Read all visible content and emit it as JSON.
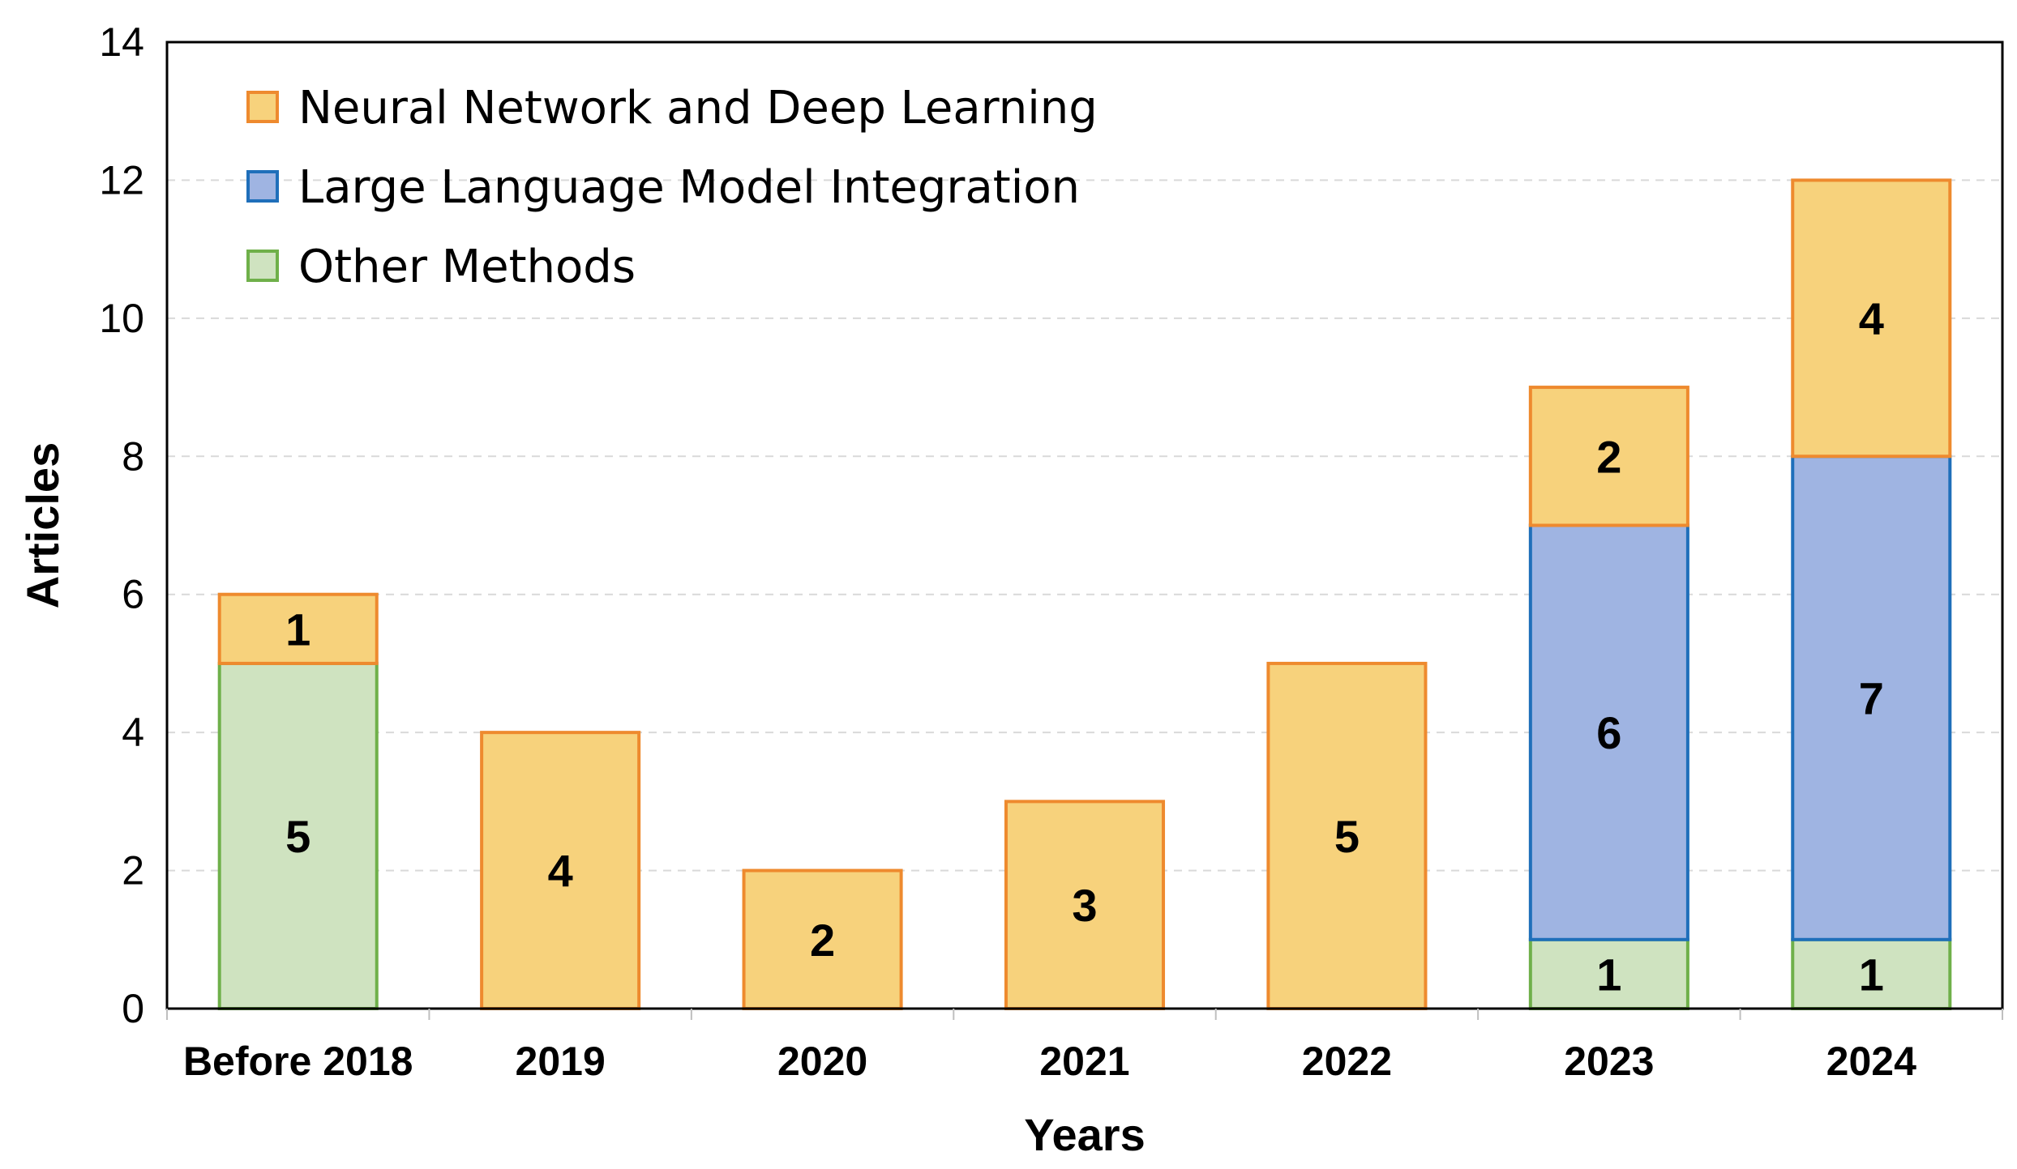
{
  "chart_data": {
    "type": "bar",
    "stacked": true,
    "title": "",
    "xlabel": "Years",
    "ylabel": "Articles",
    "ylim": [
      0,
      14
    ],
    "yticks": [
      0,
      2,
      4,
      6,
      8,
      10,
      12,
      14
    ],
    "grid": true,
    "legend_position": "top-left",
    "categories": [
      "Before 2018",
      "2019",
      "2020",
      "2021",
      "2022",
      "2023",
      "2024"
    ],
    "series": [
      {
        "name": "Other Methods",
        "fill": "#cfe3c0",
        "stroke": "#6fb04a",
        "values": [
          5,
          0,
          0,
          0,
          0,
          1,
          1
        ]
      },
      {
        "name": "Large Language Model Integration",
        "fill": "#9fb4e2",
        "stroke": "#1f6fba",
        "values": [
          0,
          0,
          0,
          0,
          0,
          6,
          7
        ]
      },
      {
        "name": "Neural Network and Deep Learning",
        "fill": "#f7d27c",
        "stroke": "#ee8a2e",
        "values": [
          1,
          4,
          2,
          3,
          5,
          2,
          4
        ]
      }
    ],
    "legend_order": [
      "Neural Network and Deep Learning",
      "Large Language Model Integration",
      "Other Methods"
    ]
  }
}
